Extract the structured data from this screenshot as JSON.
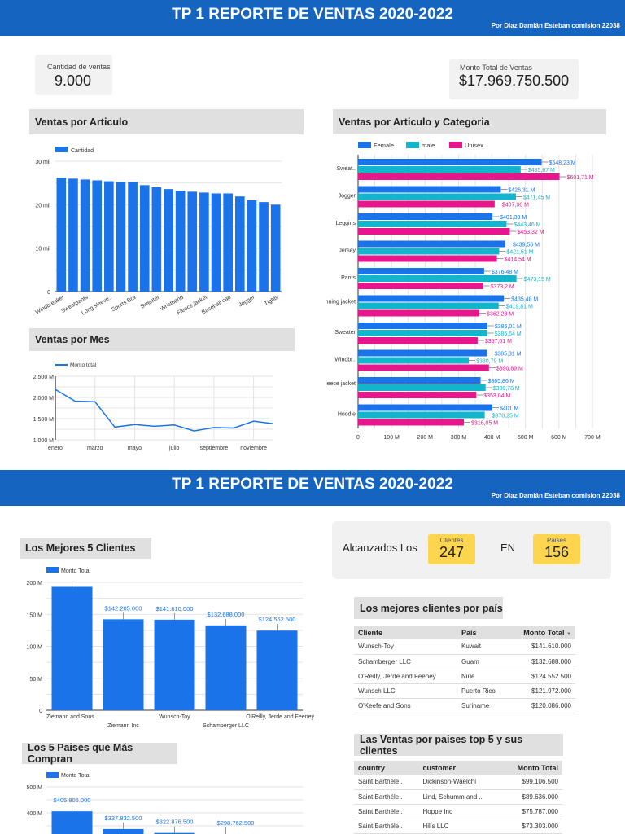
{
  "header": {
    "title": "TP 1 REPORTE DE VENTAS 2020-2022",
    "subtitle": "Por Diaz Damián Esteban comision 22038"
  },
  "kpis": {
    "cantidad_label": "Cantidad de ventas",
    "cantidad_value": "9.000",
    "monto_label": "Monto Total de Ventas",
    "monto_value": "$17.969.750.500"
  },
  "sections": {
    "articulo": "Ventas por Articulo",
    "categoria": "Ventas por Articulo y Categoria",
    "mes": "Ventas por Mes",
    "clientes": "Los Mejores 5 Clientes",
    "paises": "Los 5 Paises que Más Compran",
    "clientes_pais": "Los mejores clientes por país",
    "ventas_paises": "Las Ventas por paises top 5 y sus clientes"
  },
  "stats": {
    "prefix": "Alcanzados Los",
    "clientes_label": "Clientes",
    "clientes_value": "247",
    "mid": "EN",
    "paises_label": "Paises",
    "paises_value": "156"
  },
  "colors": {
    "blue": "#1a73e8",
    "teal": "#12b5cb",
    "pink": "#e8168c",
    "header": "#1565c0",
    "kpi_yellow": "#fdd54f"
  },
  "table_clientes": {
    "headers": [
      "Cliente",
      "País",
      "Monto Total"
    ],
    "sort_icon": "sort-desc-icon",
    "rows": [
      [
        "Wunsch-Toy",
        "Kuwait",
        "$141.610.000"
      ],
      [
        "Schamberger LLC",
        "Guam",
        "$132.688.000"
      ],
      [
        "O'Reilly, Jerde and Feeney",
        "Niue",
        "$124.552.500"
      ],
      [
        "Wunsch LLC",
        "Puerto Rico",
        "$121.972.000"
      ],
      [
        "O'Keefe and Sons",
        "Suriname",
        "$120.086.000"
      ]
    ]
  },
  "table_paises": {
    "headers": [
      "country",
      "customer",
      "Monto Total"
    ],
    "rows": [
      [
        "Saint Barthéle..",
        "Dickinson-Waelchi",
        "$99.106.500"
      ],
      [
        "Saint Barthéle..",
        "Lind, Schumm and ..",
        "$89.636.000"
      ],
      [
        "Saint Barthéle..",
        "Hoppe Inc",
        "$75.787.000"
      ],
      [
        "Saint Barthéle..",
        "Hills LLC",
        "$73.303.000"
      ]
    ]
  },
  "chart_data": [
    {
      "type": "bar",
      "legend": [
        "Cantidad"
      ],
      "yticks": [
        "0",
        "10 mil",
        "20 mil",
        "30 mil"
      ],
      "ylim": [
        0,
        30000
      ],
      "categories": [
        "Windbreaker",
        "",
        "Sweatpants",
        "",
        "Long sleeve..",
        "",
        "Sports Bra",
        "",
        "Sweater",
        "",
        "Wristband",
        "",
        "Fleece jacket",
        "",
        "Baseball cap",
        "",
        "Jogger",
        "",
        "Tights"
      ],
      "values": [
        26200,
        26000,
        25800,
        25600,
        25400,
        25200,
        25200,
        24500,
        24000,
        23600,
        23200,
        23000,
        22800,
        22600,
        22600,
        21900,
        21000,
        20600,
        20000
      ]
    },
    {
      "type": "bar",
      "orientation": "horizontal",
      "xlim": [
        0,
        700
      ],
      "xticks": [
        "0",
        "100 M",
        "200 M",
        "300 M",
        "400 M",
        "500 M",
        "600 M",
        "700 M"
      ],
      "categories": [
        "Sweat..",
        "Jogger",
        "Leggins",
        "Jersey",
        "Pants",
        "Running jacket",
        "Sweater",
        "Windbr..",
        "Fleece jacket",
        "Hoodie"
      ],
      "series": [
        {
          "name": "Female",
          "values": [
            548.23,
            426.31,
            401.39,
            439.56,
            376.48,
            435.48,
            386.01,
            385.31,
            365.86,
            401
          ],
          "labels": [
            "$548,23 M",
            "$426,31 M",
            "$401,39 M",
            "$439,56 M",
            "$376,48 M",
            "$435,48 M",
            "$386,01 M",
            "$385,31 M",
            "$365,86 M",
            "$401 M"
          ]
        },
        {
          "name": "male",
          "values": [
            485.67,
            471.45,
            443.46,
            421.51,
            473.15,
            419.81,
            385.64,
            330.79,
            380.78,
            378.25
          ],
          "labels": [
            "$485,67 M",
            "$471,45 M",
            "$443,46 M",
            "$421,51 M",
            "$473,15 M",
            "$419,81 M",
            "$385,64 M",
            "$330,79 M",
            "$380,78 M",
            "$378,25 M"
          ]
        },
        {
          "name": "Unisex",
          "values": [
            601.71,
            407.96,
            453.32,
            414.54,
            373.2,
            362.28,
            357.01,
            390.89,
            353.04,
            316.05
          ],
          "labels": [
            "$601,71 M",
            "$407,96 M",
            "$453,32 M",
            "$414,54 M",
            "$373,2 M",
            "$362,28 M",
            "$357,01 M",
            "$390,89 M",
            "$353,04 M",
            "$316,05 M"
          ]
        }
      ]
    },
    {
      "type": "line",
      "legend": [
        "Monto total"
      ],
      "ylim": [
        1000,
        2500
      ],
      "yticks": [
        "1.000 M",
        "1.500 M",
        "2.000 M",
        "2.500 M"
      ],
      "x": [
        "enero",
        "febrero",
        "marzo",
        "abril",
        "mayo",
        "junio",
        "julio",
        "agosto",
        "septiembre",
        "octubre",
        "noviembre",
        "diciembre"
      ],
      "xtick_labels": [
        "enero",
        "",
        "marzo",
        "",
        "mayo",
        "",
        "julio",
        "",
        "septiembre",
        "",
        "noviembre",
        ""
      ],
      "values": [
        2190,
        1910,
        1900,
        1300,
        1360,
        1320,
        1350,
        1210,
        1290,
        1280,
        1440,
        1380
      ]
    },
    {
      "type": "bar",
      "legend": [
        "Monto Total"
      ],
      "ylim": [
        0,
        200
      ],
      "yticks": [
        "0",
        "50 M",
        "100 M",
        "150 M",
        "200 M"
      ],
      "categories": [
        "Ziemann and Sons",
        "Ziemann Inc",
        "Wunsch-Toy",
        "Schamberger LLC",
        "O'Reilly, Jerde and Feeney"
      ],
      "values": [
        193,
        142.205,
        141.61,
        132.688,
        124.5525
      ],
      "labels": [
        "",
        "$142.205.000",
        "$141.610.000",
        "$132.688.000",
        "$124.552.500"
      ]
    },
    {
      "type": "bar",
      "legend": [
        "Monto Total"
      ],
      "yticks_visible": [
        "400 M",
        "500 M"
      ],
      "values": [
        405.806,
        337.8325,
        322.8765,
        298.7625
      ],
      "labels": [
        "$405.806.000",
        "$337.832.500",
        "$322.876.500",
        "$298.762.500"
      ]
    }
  ]
}
